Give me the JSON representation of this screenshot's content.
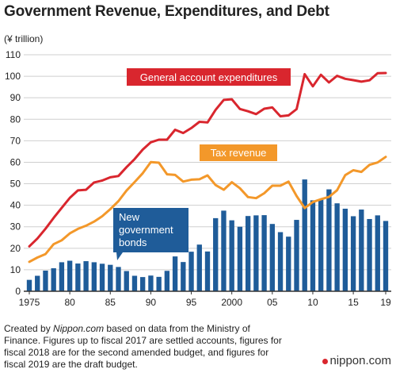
{
  "title": "Government Revenue, Expenditures, and Debt",
  "unit": "(¥ trillion)",
  "footer": {
    "prefix": "Created by ",
    "source": "Nippon.com",
    "text": " based on data from the Ministry of Finance. Figures up to fiscal 2017 are settled accounts, figures for fiscal 2018 are for the second amended budget, and figures for fiscal 2019 are the draft budget."
  },
  "brand": "nippon.com",
  "colors": {
    "expenditures": "#d9262e",
    "tax_revenue": "#f3982a",
    "bonds": "#1f5c99",
    "grid": "#cfcfcf",
    "axis": "#333333"
  },
  "chart_data": {
    "type": "bar+line",
    "years": [
      1975,
      1976,
      1977,
      1978,
      1979,
      1980,
      1981,
      1982,
      1983,
      1984,
      1985,
      1986,
      1987,
      1988,
      1989,
      1990,
      1991,
      1992,
      1993,
      1994,
      1995,
      1996,
      1997,
      1998,
      1999,
      2000,
      2001,
      2002,
      2003,
      2004,
      2005,
      2006,
      2007,
      2008,
      2009,
      2010,
      2011,
      2012,
      2013,
      2014,
      2015,
      2016,
      2017,
      2018,
      2019
    ],
    "x_tick_labels": [
      "1975",
      "80",
      "85",
      "90",
      "95",
      "2000",
      "05",
      "10",
      "15",
      "19"
    ],
    "x_tick_years": [
      1975,
      1980,
      1985,
      1990,
      1995,
      2000,
      2005,
      2010,
      2015,
      2019
    ],
    "ylim": [
      0,
      110
    ],
    "yticks": [
      0,
      10,
      20,
      30,
      40,
      50,
      60,
      70,
      80,
      90,
      100,
      110
    ],
    "grid": true,
    "series": [
      {
        "name": "General account expenditures",
        "kind": "line",
        "color": "#d9262e",
        "values": [
          20.9,
          24.5,
          29.1,
          34.1,
          38.8,
          43.4,
          46.9,
          47.2,
          50.6,
          51.5,
          53.0,
          53.6,
          57.7,
          61.5,
          65.9,
          69.3,
          70.5,
          70.5,
          75.1,
          73.6,
          75.9,
          78.8,
          78.5,
          84.4,
          89.0,
          89.3,
          84.8,
          83.7,
          82.4,
          84.9,
          85.5,
          81.4,
          81.8,
          84.7,
          101.0,
          95.3,
          100.7,
          97.1,
          100.2,
          98.8,
          98.2,
          97.5,
          98.1,
          101.4,
          101.5
        ]
      },
      {
        "name": "Tax revenue",
        "kind": "line",
        "color": "#f3982a",
        "values": [
          13.7,
          15.7,
          17.3,
          21.9,
          23.7,
          26.9,
          29.0,
          30.5,
          32.4,
          34.9,
          38.2,
          41.9,
          46.8,
          50.8,
          54.9,
          60.1,
          59.8,
          54.4,
          54.1,
          51.0,
          51.9,
          52.1,
          53.9,
          49.4,
          47.2,
          50.7,
          47.9,
          43.8,
          43.3,
          45.6,
          49.1,
          49.1,
          51.0,
          44.3,
          38.7,
          41.5,
          42.8,
          43.9,
          47.0,
          54.0,
          56.3,
          55.5,
          58.8,
          59.9,
          62.5
        ]
      },
      {
        "name": "New government bonds",
        "kind": "bar",
        "color": "#1f5c99",
        "values": [
          5.3,
          7.2,
          9.6,
          10.7,
          13.5,
          14.2,
          12.9,
          14.0,
          13.5,
          12.8,
          12.3,
          11.3,
          9.4,
          7.2,
          6.6,
          7.3,
          6.7,
          9.5,
          16.2,
          13.6,
          18.4,
          21.7,
          18.5,
          34.0,
          37.5,
          33.0,
          30.0,
          35.0,
          35.3,
          35.4,
          31.3,
          27.5,
          25.4,
          33.2,
          52.0,
          42.3,
          42.8,
          47.4,
          40.9,
          38.4,
          34.9,
          38.0,
          33.6,
          35.3,
          32.7
        ]
      }
    ],
    "annotations": [
      {
        "text": "General account expenditures",
        "series": "General account expenditures"
      },
      {
        "text": "Tax revenue",
        "series": "Tax revenue"
      },
      {
        "lines": [
          "New",
          "government",
          "bonds"
        ],
        "series": "New government bonds"
      }
    ]
  }
}
